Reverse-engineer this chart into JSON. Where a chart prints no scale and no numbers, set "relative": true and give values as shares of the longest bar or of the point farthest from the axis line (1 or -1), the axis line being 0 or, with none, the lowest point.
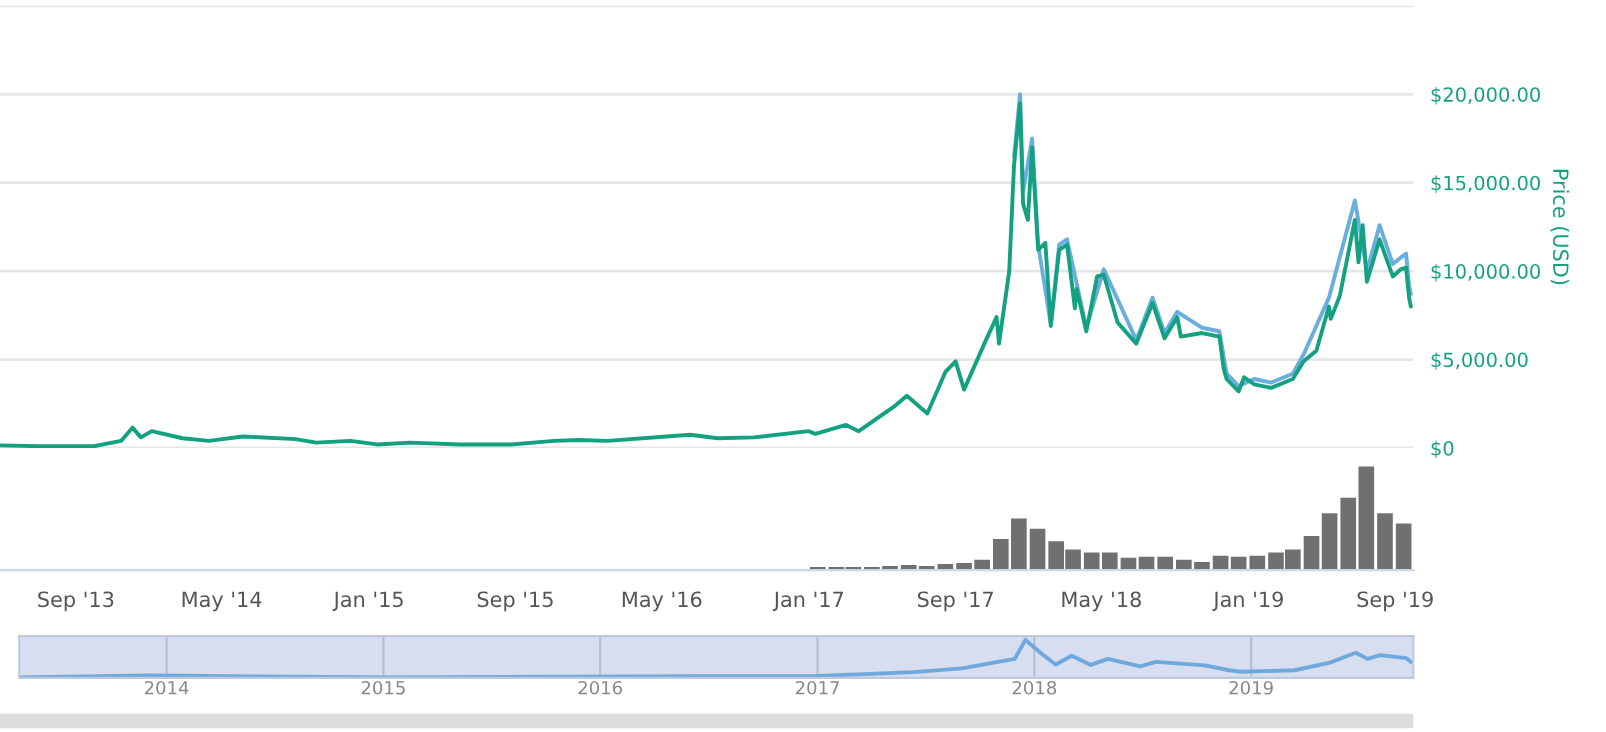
{
  "chart_data": [
    {
      "type": "line",
      "ylabel": "Price (USD)",
      "xlim": [
        "2013-04-28",
        "2019-10-01"
      ],
      "ylim": [
        0,
        25000
      ],
      "yticks": [
        {
          "value": 0,
          "label": "$0"
        },
        {
          "value": 5000,
          "label": "$5,000.00"
        },
        {
          "value": 10000,
          "label": "$10,000.00"
        },
        {
          "value": 15000,
          "label": "$15,000.00"
        },
        {
          "value": 20000,
          "label": "$20,000.00"
        },
        {
          "value": 25000,
          "label": null
        }
      ],
      "grid": "y",
      "tick_labels": "y",
      "line_style": "solid",
      "series": [
        {
          "color": "#6aaee0",
          "x": [
            "2017-12-07",
            "2017-12-17",
            "2017-12-22",
            "2018-01-06",
            "2018-01-16",
            "2018-02-06",
            "2018-02-20",
            "2018-03-05",
            "2018-04-06",
            "2018-05-05",
            "2018-06-28",
            "2018-07-25",
            "2018-08-14",
            "2018-09-04",
            "2018-10-15",
            "2018-11-13",
            "2018-11-25",
            "2018-12-15",
            "2019-01-10",
            "2019-02-07",
            "2019-03-15",
            "2019-04-02",
            "2019-05-14",
            "2019-06-26",
            "2019-07-16",
            "2019-08-06",
            "2019-08-28",
            "2019-09-19",
            "2019-09-24",
            "2019-09-27"
          ],
          "values": [
            16500,
            20000,
            14500,
            17500,
            11500,
            7000,
            11500,
            11800,
            6800,
            10100,
            6100,
            8500,
            6500,
            7700,
            6800,
            6600,
            4200,
            3500,
            3900,
            3700,
            4200,
            5300,
            8500,
            14000,
            10000,
            12600,
            10400,
            11000,
            9200,
            8700
          ]
        },
        {
          "color": "#13a180",
          "x": [
            "2013-04-28",
            "2013-07-01",
            "2013-10-01",
            "2013-11-15",
            "2013-12-04",
            "2013-12-18",
            "2014-01-05",
            "2014-02-25",
            "2014-04-10",
            "2014-06-05",
            "2014-09-01",
            "2014-10-05",
            "2014-12-01",
            "2015-01-14",
            "2015-03-10",
            "2015-06-01",
            "2015-08-25",
            "2015-11-04",
            "2015-12-15",
            "2016-02-01",
            "2016-06-17",
            "2016-08-02",
            "2016-10-01",
            "2016-12-31",
            "2017-01-11",
            "2017-03-03",
            "2017-03-24",
            "2017-05-24",
            "2017-06-12",
            "2017-07-16",
            "2017-08-15",
            "2017-09-01",
            "2017-09-15",
            "2017-10-20",
            "2017-11-08",
            "2017-11-12",
            "2017-11-29",
            "2017-12-07",
            "2017-12-17",
            "2017-12-22",
            "2017-12-30",
            "2018-01-06",
            "2018-01-16",
            "2018-01-28",
            "2018-02-06",
            "2018-02-20",
            "2018-03-05",
            "2018-03-18",
            "2018-03-21",
            "2018-04-06",
            "2018-04-24",
            "2018-05-05",
            "2018-05-28",
            "2018-06-28",
            "2018-07-25",
            "2018-08-14",
            "2018-09-04",
            "2018-09-10",
            "2018-10-15",
            "2018-11-13",
            "2018-11-20",
            "2018-11-25",
            "2018-12-15",
            "2018-12-24",
            "2019-01-10",
            "2019-02-07",
            "2019-03-15",
            "2019-04-02",
            "2019-04-23",
            "2019-05-14",
            "2019-05-17",
            "2019-06-01",
            "2019-06-26",
            "2019-07-02",
            "2019-07-09",
            "2019-07-16",
            "2019-08-06",
            "2019-08-28",
            "2019-09-10",
            "2019-09-19",
            "2019-09-24",
            "2019-09-27"
          ],
          "values": [
            150,
            100,
            100,
            400,
            1150,
            600,
            950,
            550,
            400,
            650,
            500,
            300,
            400,
            200,
            300,
            200,
            200,
            400,
            450,
            400,
            750,
            550,
            600,
            950,
            800,
            1300,
            950,
            2400,
            2950,
            1950,
            4300,
            4900,
            3300,
            6000,
            7400,
            5900,
            10000,
            16000,
            19500,
            13800,
            12900,
            17000,
            11200,
            11600,
            6900,
            11200,
            11500,
            7900,
            9000,
            6600,
            9700,
            9800,
            7100,
            5900,
            8200,
            6200,
            7400,
            6300,
            6500,
            6300,
            4500,
            3900,
            3200,
            4000,
            3600,
            3400,
            3900,
            4900,
            5500,
            8000,
            7300,
            8600,
            12900,
            10500,
            12600,
            9400,
            11800,
            9700,
            10100,
            10200,
            8500,
            8000
          ]
        }
      ]
    },
    {
      "type": "bar",
      "relative": true,
      "xlim": [
        "2013-04-28",
        "2019-10-01"
      ],
      "tick_labels": "x",
      "xticks": [
        {
          "value": "2013-09-01",
          "label": "Sep '13"
        },
        {
          "value": "2014-05-01",
          "label": "May '14"
        },
        {
          "value": "2015-01-01",
          "label": "Jan '15"
        },
        {
          "value": "2015-09-01",
          "label": "Sep '15"
        },
        {
          "value": "2016-05-01",
          "label": "May '16"
        },
        {
          "value": "2017-01-01",
          "label": "Jan '17"
        },
        {
          "value": "2017-09-01",
          "label": "Sep '17"
        },
        {
          "value": "2018-05-01",
          "label": "May '18"
        },
        {
          "value": "2019-01-01",
          "label": "Jan '19"
        },
        {
          "value": "2019-09-01",
          "label": "Sep '19"
        }
      ],
      "series": [
        {
          "color": "#707070",
          "x": [
            "2017-01-15",
            "2017-02-15",
            "2017-03-15",
            "2017-04-15",
            "2017-05-15",
            "2017-06-15",
            "2017-07-15",
            "2017-08-15",
            "2017-09-15",
            "2017-10-15",
            "2017-11-15",
            "2017-12-15",
            "2018-01-15",
            "2018-02-15",
            "2018-03-15",
            "2018-04-15",
            "2018-05-15",
            "2018-06-15",
            "2018-07-15",
            "2018-08-15",
            "2018-09-15",
            "2018-10-15",
            "2018-11-15",
            "2018-12-15",
            "2019-01-15",
            "2019-02-15",
            "2019-03-15",
            "2019-04-15",
            "2019-05-15",
            "2019-06-15",
            "2019-07-15",
            "2019-08-15",
            "2019-09-15"
          ],
          "values": [
            0.03,
            0.03,
            0.03,
            0.03,
            0.04,
            0.05,
            0.04,
            0.06,
            0.07,
            0.1,
            0.3,
            0.5,
            0.4,
            0.28,
            0.2,
            0.17,
            0.17,
            0.12,
            0.13,
            0.13,
            0.1,
            0.08,
            0.14,
            0.13,
            0.14,
            0.17,
            0.2,
            0.33,
            0.55,
            0.7,
            1.0,
            0.55,
            0.45
          ]
        }
      ]
    },
    {
      "type": "line",
      "relative": true,
      "xlim": [
        "2013-04-28",
        "2019-10-01"
      ],
      "grid": "x",
      "tick_labels": "x",
      "xticks": [
        {
          "value": "2014-01-01",
          "label": "2014"
        },
        {
          "value": "2015-01-01",
          "label": "2015"
        },
        {
          "value": "2016-01-01",
          "label": "2016"
        },
        {
          "value": "2017-01-01",
          "label": "2017"
        },
        {
          "value": "2018-01-01",
          "label": "2018"
        },
        {
          "value": "2019-01-01",
          "label": "2019"
        }
      ],
      "series": [
        {
          "color": "#6fa8dc",
          "x": [
            "2013-04-28",
            "2013-12-04",
            "2015-01-14",
            "2016-06-17",
            "2017-01-01",
            "2017-06-12",
            "2017-09-01",
            "2017-11-29",
            "2017-12-17",
            "2018-01-16",
            "2018-02-06",
            "2018-03-05",
            "2018-04-06",
            "2018-05-05",
            "2018-06-28",
            "2018-07-25",
            "2018-10-15",
            "2018-11-25",
            "2018-12-15",
            "2019-03-15",
            "2019-05-14",
            "2019-06-26",
            "2019-07-16",
            "2019-08-06",
            "2019-09-19",
            "2019-09-27"
          ],
          "values": [
            0.01,
            0.06,
            0.01,
            0.04,
            0.05,
            0.15,
            0.25,
            0.5,
            1,
            0.6,
            0.35,
            0.58,
            0.34,
            0.5,
            0.3,
            0.42,
            0.33,
            0.2,
            0.16,
            0.2,
            0.4,
            0.66,
            0.5,
            0.6,
            0.52,
            0.42
          ]
        }
      ]
    }
  ]
}
